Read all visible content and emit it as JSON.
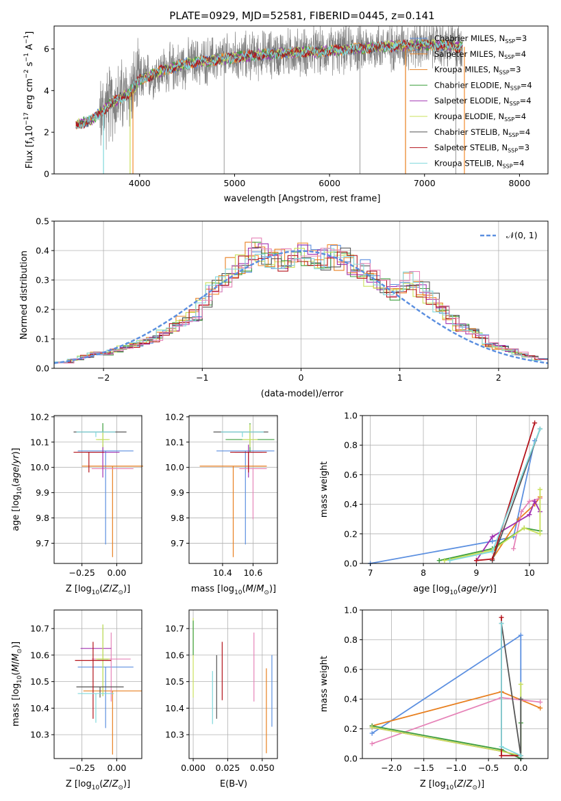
{
  "figure_title": "PLATE=0929, MJD=52581, FIBERID=0445, z=0.141",
  "colors": {
    "chabrier_miles": "#5b8fe0",
    "salpeter_miles": "#f28b2e",
    "kroupa_miles": "#e87f1e",
    "chabrier_elodie": "#3c9e3c",
    "salpeter_elodie": "#a030b0",
    "kroupa_elodie": "#c9e05a",
    "chabrier_stelib": "#555555",
    "salpeter_stelib": "#b3121a",
    "kroupa_stelib": "#7fd8dc",
    "pink": "#e683b8",
    "data": "#7f7f7f"
  },
  "chart_data": [
    {
      "id": "spectrum",
      "type": "line",
      "xlabel": "wavelength [Angstrom, rest frame]",
      "ylabel": "Flux [f_λ 10^-17 erg cm^-2 s^-1 A^-1]",
      "xlim": [
        3100,
        8300
      ],
      "ylim": [
        0,
        7.1
      ],
      "xticks": [
        4000,
        5000,
        6000,
        7000,
        8000
      ],
      "yticks": [
        0,
        2,
        4,
        6
      ],
      "grid": false,
      "legend_position": "right",
      "legend": [
        {
          "label": "Chabrier MILES, N_SSP=3",
          "color_key": "chabrier_miles"
        },
        {
          "label": "Salpeter MILES, N_SSP=4",
          "color_key": "salpeter_miles"
        },
        {
          "label": "Kroupa MILES, N_SSP=3",
          "color_key": "kroupa_miles"
        },
        {
          "label": "Chabrier ELODIE, N_SSP=4",
          "color_key": "chabrier_elodie"
        },
        {
          "label": "Salpeter ELODIE, N_SSP=4",
          "color_key": "salpeter_elodie"
        },
        {
          "label": "Kroupa ELODIE, N_SSP=4",
          "color_key": "kroupa_elodie"
        },
        {
          "label": "Chabrier STELIB, N_SSP=4",
          "color_key": "chabrier_stelib"
        },
        {
          "label": "Salpeter STELIB, N_SSP=3",
          "color_key": "salpeter_stelib"
        },
        {
          "label": "Kroupa STELIB, N_SSP=4",
          "color_key": "kroupa_stelib"
        }
      ],
      "continuum": {
        "x": [
          3300,
          3500,
          3700,
          3900,
          4000,
          4200,
          4500,
          5000,
          5500,
          6000,
          6500,
          7000,
          7400
        ],
        "y": [
          2.3,
          2.6,
          3.4,
          3.9,
          4.5,
          4.9,
          5.3,
          5.6,
          5.8,
          5.9,
          6.1,
          6.2,
          6.1
        ]
      },
      "dropouts": [
        {
          "x": 3620,
          "color_key": "kroupa_stelib"
        },
        {
          "x": 3900,
          "color_key": "kroupa_elodie"
        },
        {
          "x": 3930,
          "color_key": "salpeter_miles"
        },
        {
          "x": 6800,
          "color_key": "kroupa_miles"
        },
        {
          "x": 7420,
          "color_key": "salpeter_miles"
        }
      ]
    },
    {
      "id": "residuals",
      "type": "line",
      "xlabel": "(data-model)/error",
      "ylabel": "Normed distribution",
      "xlim": [
        -2.5,
        2.5
      ],
      "ylim": [
        0,
        0.5
      ],
      "xticks": [
        -2,
        -1,
        0,
        1,
        2
      ],
      "xticklabels": [
        "−2",
        "−1",
        "0",
        "1",
        "2"
      ],
      "yticks": [
        0.0,
        0.1,
        0.2,
        0.3,
        0.4,
        0.5
      ],
      "yticklabels": [
        "0.0",
        "0.1",
        "0.2",
        "0.3",
        "0.4",
        "0.5"
      ],
      "grid": true,
      "legend_position": "top-right",
      "legend_label": "𝒩(0, 1)",
      "gaussian": {
        "mean": 0,
        "sigma": 1
      },
      "bin_width": 0.1,
      "histogram_envelope": [
        0.02,
        0.02,
        0.03,
        0.04,
        0.05,
        0.05,
        0.06,
        0.07,
        0.08,
        0.09,
        0.1,
        0.12,
        0.14,
        0.16,
        0.18,
        0.22,
        0.27,
        0.31,
        0.34,
        0.35,
        0.41,
        0.39,
        0.36,
        0.37,
        0.38,
        0.39,
        0.38,
        0.37,
        0.38,
        0.37,
        0.35,
        0.34,
        0.31,
        0.28,
        0.26,
        0.27,
        0.3,
        0.27,
        0.24,
        0.21,
        0.17,
        0.14,
        0.13,
        0.11,
        0.08,
        0.07,
        0.06,
        0.05,
        0.04,
        0.03
      ]
    },
    {
      "id": "age-vs-Z",
      "type": "scatter",
      "xlabel": "Z [log10(Z/Z⊙)]",
      "ylabel": "age [log10(age/yr)]",
      "xlim": [
        -0.45,
        0.18
      ],
      "ylim": [
        9.62,
        10.205
      ],
      "xticks": [
        -0.25,
        0.0
      ],
      "xticklabels": [
        "−0.25",
        "0.00"
      ],
      "yticks": [
        9.7,
        9.8,
        9.9,
        10.0,
        10.1,
        10.2
      ],
      "yticklabels": [
        "9.7",
        "9.8",
        "9.9",
        "10.0",
        "10.1",
        "10.2"
      ],
      "grid": true,
      "points": [
        {
          "x": -0.08,
          "y": 10.065,
          "xerr": 0.2,
          "yerr_lo": 0.37,
          "yerr_hi": 0.0,
          "color_key": "chabrier_miles"
        },
        {
          "x": -0.03,
          "y": 10.005,
          "xerr": 0.22,
          "yerr_lo": 0.36,
          "yerr_hi": 0.0,
          "color_key": "kroupa_miles"
        },
        {
          "x": -0.03,
          "y": 9.995,
          "xerr": 0.15,
          "yerr_lo": 0.0,
          "yerr_hi": 0.0,
          "color_key": "pink"
        },
        {
          "x": -0.1,
          "y": 10.11,
          "xerr": 0.04,
          "yerr_lo": 0.05,
          "yerr_hi": 0.065,
          "color_key": "chabrier_elodie"
        },
        {
          "x": -0.1,
          "y": 10.06,
          "xerr": 0.12,
          "yerr_lo": 0.1,
          "yerr_hi": 0.03,
          "color_key": "salpeter_elodie"
        },
        {
          "x": -0.1,
          "y": 10.11,
          "xerr": 0.05,
          "yerr_lo": 0.03,
          "yerr_hi": 0.03,
          "color_key": "kroupa_elodie"
        },
        {
          "x": -0.12,
          "y": 10.14,
          "xerr": 0.19,
          "yerr_lo": 0.0,
          "yerr_hi": 0.0,
          "color_key": "chabrier_stelib"
        },
        {
          "x": -0.2,
          "y": 10.06,
          "xerr": 0.11,
          "yerr_lo": 0.08,
          "yerr_hi": 0.0,
          "color_key": "salpeter_stelib"
        },
        {
          "x": -0.15,
          "y": 10.14,
          "xerr": 0.14,
          "yerr_lo": 0.02,
          "yerr_hi": 0.0,
          "color_key": "kroupa_stelib"
        }
      ]
    },
    {
      "id": "age-vs-mass",
      "type": "scatter",
      "xlabel": "mass [log10(M/M⊙)]",
      "ylabel": "",
      "xlim": [
        10.18,
        10.76
      ],
      "ylim": [
        9.62,
        10.205
      ],
      "xticks": [
        10.4,
        10.6
      ],
      "xticklabels": [
        "10.4",
        "10.6"
      ],
      "yticks": [
        9.7,
        9.8,
        9.9,
        10.0,
        10.1,
        10.2
      ],
      "yticklabels": [
        "9.7",
        "9.8",
        "9.9",
        "10.0",
        "10.1",
        "10.2"
      ],
      "grid": true,
      "points": [
        {
          "x": 10.55,
          "y": 10.065,
          "xerr": 0.19,
          "yerr_lo": 0.37,
          "yerr_hi": 0.0,
          "color_key": "chabrier_miles"
        },
        {
          "x": 10.47,
          "y": 10.005,
          "xerr": 0.22,
          "yerr_lo": 0.36,
          "yerr_hi": 0.0,
          "color_key": "kroupa_miles"
        },
        {
          "x": 10.6,
          "y": 9.995,
          "xerr": 0.09,
          "yerr_lo": 0.2,
          "yerr_hi": 0.0,
          "color_key": "pink"
        },
        {
          "x": 10.58,
          "y": 10.11,
          "xerr": 0.16,
          "yerr_lo": 0.05,
          "yerr_hi": 0.065,
          "color_key": "chabrier_elodie"
        },
        {
          "x": 10.57,
          "y": 10.06,
          "xerr": 0.09,
          "yerr_lo": 0.1,
          "yerr_hi": 0.03,
          "color_key": "salpeter_elodie"
        },
        {
          "x": 10.58,
          "y": 10.11,
          "xerr": 0.05,
          "yerr_lo": 0.03,
          "yerr_hi": 0.06,
          "color_key": "kroupa_elodie"
        },
        {
          "x": 10.52,
          "y": 10.14,
          "xerr": 0.18,
          "yerr_lo": 0.0,
          "yerr_hi": 0.0,
          "color_key": "chabrier_stelib"
        },
        {
          "x": 10.57,
          "y": 10.06,
          "xerr": 0.12,
          "yerr_lo": 0.08,
          "yerr_hi": 0.0,
          "color_key": "salpeter_stelib"
        },
        {
          "x": 10.53,
          "y": 10.14,
          "xerr": 0.14,
          "yerr_lo": 0.02,
          "yerr_hi": 0.0,
          "color_key": "kroupa_stelib"
        }
      ]
    },
    {
      "id": "weight-vs-age",
      "type": "line",
      "xlabel": "age [log10(age/yr)]",
      "ylabel": "mass weight",
      "xlim": [
        6.85,
        10.35
      ],
      "ylim": [
        0,
        1.0
      ],
      "xticks": [
        7,
        8,
        9,
        10
      ],
      "yticks": [
        0.0,
        0.2,
        0.4,
        0.6,
        0.8,
        1.0
      ],
      "yticklabels": [
        "0.0",
        "0.2",
        "0.4",
        "0.6",
        "0.8",
        "1.0"
      ],
      "grid": true,
      "series": [
        {
          "color_key": "chabrier_miles",
          "x": [
            7.0,
            9.3,
            9.7,
            10.1
          ],
          "y": [
            0.0,
            0.15,
            0.18,
            0.83
          ]
        },
        {
          "color_key": "kroupa_miles",
          "x": [
            9.3,
            9.8,
            10.1,
            10.2
          ],
          "y": [
            0.03,
            0.3,
            0.4,
            0.45
          ]
        },
        {
          "color_key": "pink",
          "x": [
            9.7,
            9.85,
            10.0,
            10.2
          ],
          "y": [
            0.1,
            0.35,
            0.42,
            0.44
          ]
        },
        {
          "color_key": "chabrier_elodie",
          "x": [
            8.3,
            9.3,
            9.9,
            10.2
          ],
          "y": [
            0.02,
            0.1,
            0.24,
            0.22
          ]
        },
        {
          "color_key": "salpeter_elodie",
          "x": [
            9.0,
            9.3,
            10.0,
            10.1,
            10.2
          ],
          "y": [
            0.02,
            0.18,
            0.33,
            0.42,
            0.35
          ]
        },
        {
          "color_key": "kroupa_elodie",
          "x": [
            8.4,
            9.3,
            9.9,
            10.2,
            10.2
          ],
          "y": [
            0.02,
            0.09,
            0.24,
            0.2,
            0.5
          ]
        },
        {
          "color_key": "chabrier_stelib",
          "x": [
            9.3,
            10.2
          ],
          "y": [
            0.02,
            0.91
          ]
        },
        {
          "color_key": "salpeter_stelib",
          "x": [
            9.0,
            9.3,
            10.1
          ],
          "y": [
            0.02,
            0.03,
            0.95
          ]
        },
        {
          "color_key": "kroupa_stelib",
          "x": [
            8.5,
            9.3,
            10.2
          ],
          "y": [
            0.02,
            0.08,
            0.91
          ]
        }
      ]
    },
    {
      "id": "mass-vs-Z",
      "type": "scatter",
      "xlabel": "Z [log10(Z/Z⊙)]",
      "ylabel": "mass [log10(M/M⊙)]",
      "xlim": [
        -0.45,
        0.18
      ],
      "ylim": [
        10.21,
        10.77
      ],
      "xticks": [
        -0.25,
        0.0
      ],
      "xticklabels": [
        "−0.25",
        "0.00"
      ],
      "yticks": [
        10.3,
        10.4,
        10.5,
        10.6,
        10.7
      ],
      "yticklabels": [
        "10.3",
        "10.4",
        "10.5",
        "10.6",
        "10.7"
      ],
      "grid": true,
      "points": [
        {
          "x": -0.08,
          "y": 10.555,
          "xerr": 0.2,
          "yerr_lo": 0.23,
          "yerr_hi": 0.0,
          "color_key": "chabrier_miles"
        },
        {
          "x": -0.03,
          "y": 10.465,
          "xerr": 0.21,
          "yerr_lo": 0.24,
          "yerr_hi": 0.0,
          "color_key": "kroupa_miles"
        },
        {
          "x": -0.04,
          "y": 10.585,
          "xerr": 0.14,
          "yerr_lo": 0.16,
          "yerr_hi": 0.1,
          "color_key": "pink"
        },
        {
          "x": -0.1,
          "y": 10.585,
          "xerr": 0.04,
          "yerr_lo": 0.14,
          "yerr_hi": 0.13,
          "color_key": "chabrier_elodie"
        },
        {
          "x": -0.15,
          "y": 10.625,
          "xerr": 0.11,
          "yerr_lo": 0.0,
          "yerr_hi": 0.0,
          "color_key": "salpeter_elodie"
        },
        {
          "x": -0.1,
          "y": 10.585,
          "xerr": 0.05,
          "yerr_lo": 0.14,
          "yerr_hi": 0.13,
          "color_key": "kroupa_elodie"
        },
        {
          "x": -0.12,
          "y": 10.48,
          "xerr": 0.17,
          "yerr_lo": 0.04,
          "yerr_hi": 0.0,
          "color_key": "chabrier_stelib"
        },
        {
          "x": -0.17,
          "y": 10.58,
          "xerr": 0.13,
          "yerr_lo": 0.22,
          "yerr_hi": 0.07,
          "color_key": "salpeter_stelib"
        },
        {
          "x": -0.15,
          "y": 10.455,
          "xerr": 0.13,
          "yerr_lo": 0.11,
          "yerr_hi": 0.0,
          "color_key": "kroupa_stelib"
        }
      ]
    },
    {
      "id": "mass-vs-ebv",
      "type": "scatter",
      "xlabel": "E(B-V)",
      "ylabel": "",
      "xlim": [
        -0.003,
        0.061
      ],
      "ylim": [
        10.21,
        10.77
      ],
      "xticks": [
        0.0,
        0.025,
        0.05
      ],
      "xticklabels": [
        "0.000",
        "0.025",
        "0.050"
      ],
      "yticks": [
        10.3,
        10.4,
        10.5,
        10.6,
        10.7
      ],
      "yticklabels": [
        "10.3",
        "10.4",
        "10.5",
        "10.6",
        "10.7"
      ],
      "grid": true,
      "points": [
        {
          "x": 0.0,
          "y": 10.6,
          "yerr_lo": 0.16,
          "yerr_hi": 0.14,
          "color_key": "kroupa_elodie"
        },
        {
          "x": 0.0,
          "y": 10.6,
          "yerr_lo": 0.0,
          "yerr_hi": 0.13,
          "color_key": "chabrier_elodie"
        },
        {
          "x": 0.014,
          "y": 10.44,
          "yerr_lo": 0.1,
          "yerr_hi": 0.1,
          "color_key": "kroupa_stelib"
        },
        {
          "x": 0.017,
          "y": 10.48,
          "yerr_lo": 0.12,
          "yerr_hi": 0.12,
          "color_key": "chabrier_stelib"
        },
        {
          "x": 0.021,
          "y": 10.54,
          "yerr_lo": 0.11,
          "yerr_hi": 0.11,
          "color_key": "salpeter_stelib"
        },
        {
          "x": 0.044,
          "y": 10.555,
          "yerr_lo": 0.13,
          "yerr_hi": 0.13,
          "color_key": "pink"
        },
        {
          "x": 0.053,
          "y": 10.43,
          "yerr_lo": 0.2,
          "yerr_hi": 0.12,
          "color_key": "kroupa_miles"
        },
        {
          "x": 0.057,
          "y": 10.46,
          "yerr_lo": 0.13,
          "yerr_hi": 0.14,
          "color_key": "chabrier_miles"
        }
      ]
    },
    {
      "id": "weight-vs-Z",
      "type": "line",
      "xlabel": "Z [log10(Z/Z⊙)]",
      "ylabel": "mass weight",
      "xlim": [
        -2.45,
        0.42
      ],
      "ylim": [
        0,
        1.0
      ],
      "xticks": [
        -2.0,
        -1.5,
        -1.0,
        -0.5,
        0.0
      ],
      "xticklabels": [
        "−2.0",
        "−1.5",
        "−1.0",
        "−0.5",
        "0.0"
      ],
      "yticks": [
        0.0,
        0.2,
        0.4,
        0.6,
        0.8,
        1.0
      ],
      "yticklabels": [
        "0.0",
        "0.2",
        "0.4",
        "0.6",
        "0.8",
        "1.0"
      ],
      "grid": true,
      "series": [
        {
          "color_key": "chabrier_miles",
          "x": [
            -2.3,
            0.0,
            0.0
          ],
          "y": [
            0.17,
            0.83,
            0.0
          ]
        },
        {
          "color_key": "kroupa_miles",
          "x": [
            -2.3,
            -0.3,
            0.3
          ],
          "y": [
            0.22,
            0.45,
            0.34
          ]
        },
        {
          "color_key": "pink",
          "x": [
            -2.3,
            -0.3,
            0.3
          ],
          "y": [
            0.1,
            0.41,
            0.38
          ]
        },
        {
          "color_key": "chabrier_elodie",
          "x": [
            -2.3,
            -0.3,
            0.0,
            0.0
          ],
          "y": [
            0.22,
            0.06,
            0.0,
            0.24
          ]
        },
        {
          "color_key": "salpeter_elodie",
          "x": [
            -2.3,
            -0.3,
            0.0
          ],
          "y": [
            0.21,
            0.05,
            0.02
          ]
        },
        {
          "color_key": "kroupa_elodie",
          "x": [
            -2.3,
            -0.3,
            0.0,
            0.0
          ],
          "y": [
            0.21,
            0.05,
            0.02,
            0.5
          ]
        },
        {
          "color_key": "chabrier_stelib",
          "x": [
            -0.3,
            0.0,
            0.0
          ],
          "y": [
            0.91,
            0.02,
            0.4
          ]
        },
        {
          "color_key": "salpeter_stelib",
          "x": [
            -0.3,
            -0.3,
            0.0
          ],
          "y": [
            0.95,
            0.02,
            0.02
          ]
        },
        {
          "color_key": "kroupa_stelib",
          "x": [
            -0.3,
            -0.3,
            0.0
          ],
          "y": [
            0.91,
            0.08,
            0.02
          ]
        }
      ]
    }
  ]
}
